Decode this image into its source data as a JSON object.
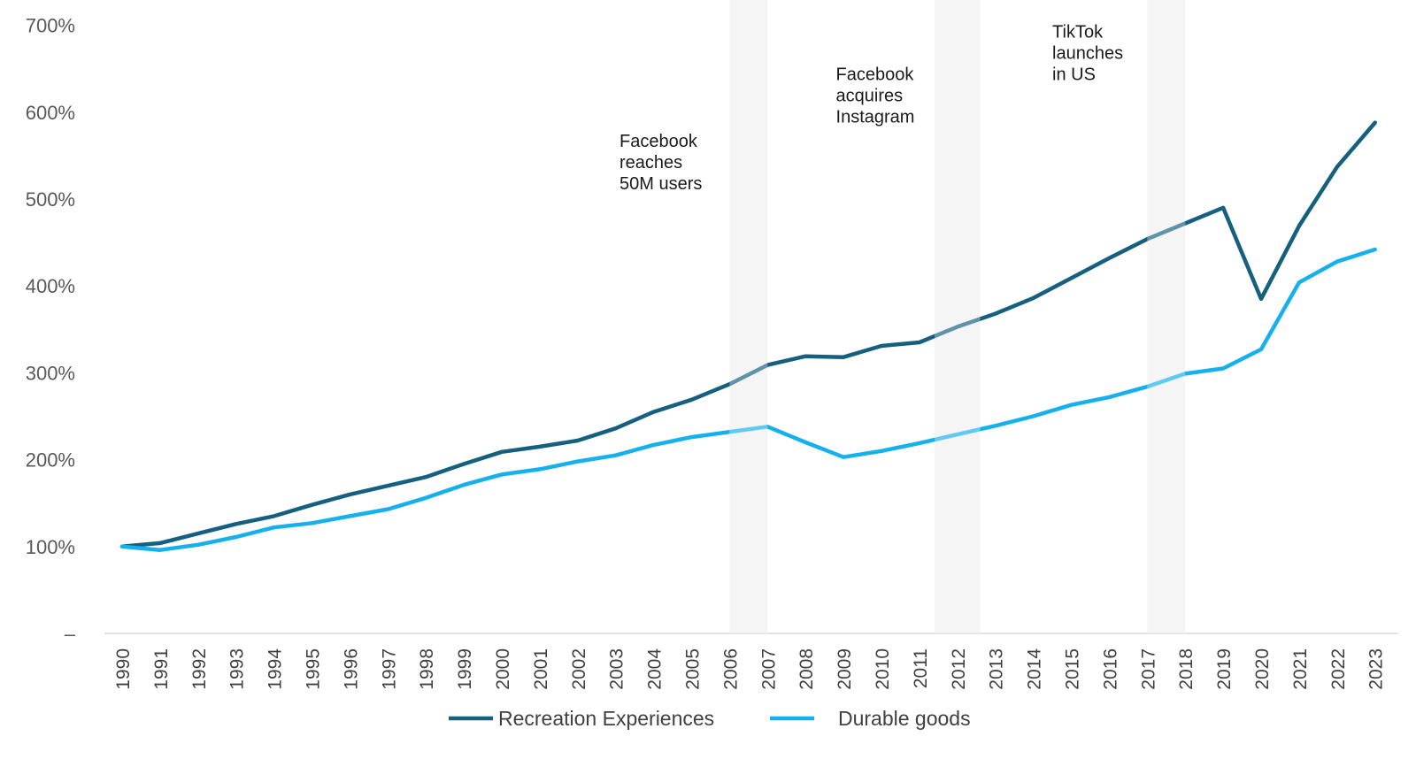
{
  "chart_data": {
    "type": "line",
    "title": "",
    "xlabel": "",
    "ylabel": "",
    "ylim": [
      0,
      700
    ],
    "yticks": [
      {
        "value": 0,
        "label": "–"
      },
      {
        "value": 100,
        "label": "100%"
      },
      {
        "value": 200,
        "label": "200%"
      },
      {
        "value": 300,
        "label": "300%"
      },
      {
        "value": 400,
        "label": "400%"
      },
      {
        "value": 500,
        "label": "500%"
      },
      {
        "value": 600,
        "label": "600%"
      },
      {
        "value": 700,
        "label": "700%"
      }
    ],
    "categories": [
      "1990",
      "1991",
      "1992",
      "1993",
      "1994",
      "1995",
      "1996",
      "1997",
      "1998",
      "1999",
      "2000",
      "2001",
      "2002",
      "2003",
      "2004",
      "2005",
      "2006",
      "2007",
      "2008",
      "2009",
      "2010",
      "2011",
      "2012",
      "2013",
      "2014",
      "2015",
      "2016",
      "2017",
      "2018",
      "2019",
      "2020",
      "2021",
      "2022",
      "2023"
    ],
    "series": [
      {
        "name": "Recreation Experiences",
        "color": "#15607F",
        "values": [
          100,
          104,
          115,
          126,
          135,
          148,
          160,
          170,
          180,
          195,
          209,
          215,
          222,
          236,
          255,
          269,
          287,
          309,
          319,
          318,
          331,
          335,
          353,
          368,
          386,
          409,
          432,
          454,
          472,
          490,
          385,
          469,
          537,
          588
        ]
      },
      {
        "name": "Durable goods",
        "color": "#16B1EC",
        "values": [
          100,
          96,
          102,
          111,
          122,
          127,
          135,
          143,
          156,
          171,
          183,
          189,
          198,
          205,
          217,
          226,
          232,
          238,
          220,
          203,
          210,
          219,
          229,
          239,
          250,
          263,
          272,
          284,
          299,
          305,
          327,
          404,
          428,
          442
        ]
      }
    ],
    "shaded_bands": [
      {
        "from": "2006",
        "to": "2007"
      },
      {
        "from": "2011.4",
        "to": "2012.6"
      },
      {
        "from": "2017",
        "to": "2018"
      }
    ],
    "annotations": [
      {
        "lines": [
          "Facebook",
          "reaches",
          "50M users"
        ],
        "x_at": 2003.1,
        "y_at": 560
      },
      {
        "lines": [
          "Facebook",
          "acquires",
          "Instagram"
        ],
        "x_at": 2008.8,
        "y_at": 637
      },
      {
        "lines": [
          "TikTok",
          "launches",
          "in US"
        ],
        "x_at": 2014.5,
        "y_at": 686
      }
    ],
    "legend": {
      "position": "bottom-center"
    },
    "grid": false,
    "colors": {
      "band": "#F0F0F0",
      "axis": "#D9D9D9"
    }
  }
}
